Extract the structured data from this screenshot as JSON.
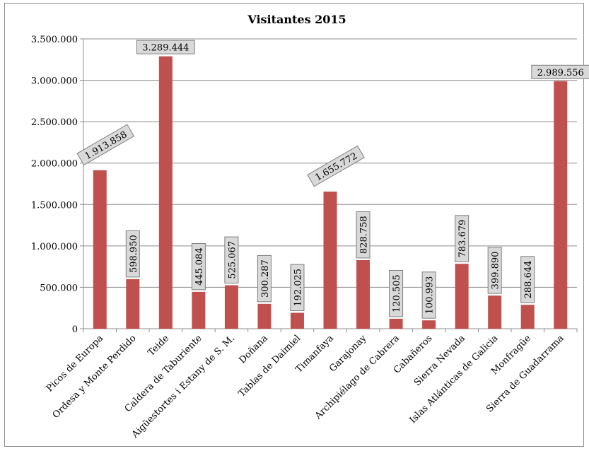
{
  "chart_data": {
    "type": "bar",
    "title": "Visitantes 2015",
    "xlabel": "",
    "ylabel": "",
    "ylim": [
      0,
      3500000
    ],
    "yticks": [
      {
        "value": 0,
        "label": "0"
      },
      {
        "value": 500000,
        "label": "500.000"
      },
      {
        "value": 1000000,
        "label": "1.000.000"
      },
      {
        "value": 1500000,
        "label": "1.500.000"
      },
      {
        "value": 2000000,
        "label": "2.000.000"
      },
      {
        "value": 2500000,
        "label": "2.500.000"
      },
      {
        "value": 3000000,
        "label": "3.000.000"
      },
      {
        "value": 3500000,
        "label": "3.500.000"
      }
    ],
    "grid": true,
    "bar_color": "#c0504d",
    "categories": [
      "Picos de Europa",
      "Ordesa y Monte Perdido",
      "Teide",
      "Caldera de Taburiente",
      "Aigüestortes i Estany de S. M.",
      "Doñana",
      "Tablas de Daimiel",
      "Timanfaya",
      "Garajonay",
      "Archipiélago de Cabrera",
      "Cabañeros",
      "Sierra Nevada",
      "Islas Atlánticas de Galicia",
      "Monfragüe",
      "Sierra de Guadarrama"
    ],
    "values": [
      1913858,
      598950,
      3289444,
      445084,
      525067,
      300287,
      192025,
      1655772,
      828758,
      120505,
      100993,
      783679,
      399890,
      288644,
      2989556
    ],
    "value_labels": [
      "1.913.858",
      "598.950",
      "3.289.444",
      "445.084",
      "525.067",
      "300.287",
      "192.025",
      "1.655.772",
      "828.758",
      "120.505",
      "100.993",
      "783.679",
      "399.890",
      "288.644",
      "2.989.556"
    ],
    "label_orientation": [
      "diagonal",
      "vertical",
      "horizontal",
      "vertical",
      "vertical",
      "vertical",
      "vertical",
      "diagonal",
      "vertical",
      "vertical",
      "vertical",
      "vertical",
      "vertical",
      "vertical",
      "horizontal"
    ]
  }
}
